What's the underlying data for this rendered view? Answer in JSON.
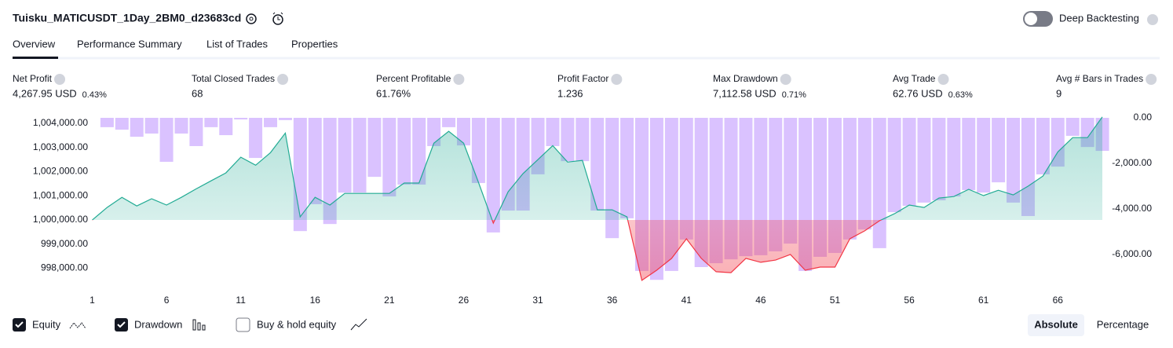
{
  "header": {
    "title": "Tuisku_MATICUSDT_1Day_2BM0_d23683cd",
    "deep_backtesting": "Deep Backtesting"
  },
  "tabs": [
    "Overview",
    "Performance Summary",
    "List of Trades",
    "Properties"
  ],
  "stats": [
    {
      "label": "Net Profit",
      "value": "4,267.95 USD",
      "percent": "0.43%"
    },
    {
      "label": "Total Closed Trades",
      "value": "68"
    },
    {
      "label": "Percent Profitable",
      "value": "61.76%"
    },
    {
      "label": "Profit Factor",
      "value": "1.236"
    },
    {
      "label": "Max Drawdown",
      "value": "7,112.58 USD",
      "percent": "0.71%"
    },
    {
      "label": "Avg Trade",
      "value": "62.76 USD",
      "percent": "0.63%"
    },
    {
      "label": "Avg # Bars in Trades",
      "value": "9"
    }
  ],
  "controls": {
    "buy_hold": "Buy & hold equity",
    "modes": [
      "Absolute",
      "Percentage"
    ]
  },
  "chart_data": {
    "type": "line",
    "x": [
      1,
      2,
      3,
      4,
      5,
      6,
      7,
      8,
      9,
      10,
      11,
      12,
      13,
      14,
      15,
      16,
      17,
      18,
      19,
      20,
      21,
      22,
      23,
      24,
      25,
      26,
      27,
      28,
      29,
      30,
      31,
      32,
      33,
      34,
      35,
      36,
      37,
      38,
      39,
      40,
      41,
      42,
      43,
      44,
      45,
      46,
      47,
      48,
      49,
      50,
      51,
      52,
      53,
      54,
      55,
      56,
      57,
      58,
      59,
      60,
      61,
      62,
      63,
      64,
      65,
      66,
      67,
      68,
      69
    ],
    "xlim": [
      0.5,
      69.5
    ],
    "xticks": [
      1,
      6,
      11,
      16,
      21,
      26,
      31,
      36,
      41,
      46,
      51,
      56,
      61,
      66
    ],
    "ylim": [
      997400,
      1004230
    ],
    "yticks": [
      {
        "value": 1004000,
        "label": "1,004,000.00"
      },
      {
        "value": 1003000,
        "label": "1,003,000.00"
      },
      {
        "value": 1002000,
        "label": "1,002,000.00"
      },
      {
        "value": 1001000,
        "label": "1,001,000.00"
      },
      {
        "value": 1000000,
        "label": "1,000,000.00"
      },
      {
        "value": 999000,
        "label": "999,000.00"
      },
      {
        "value": 998000,
        "label": "998,000.00"
      }
    ],
    "y2lim": [
      -7240,
      0
    ],
    "y2ticks": [
      {
        "value": 0,
        "label": "0.00"
      },
      {
        "value": -2000,
        "label": "-2,000.00"
      },
      {
        "value": -4000,
        "label": "-4,000.00"
      },
      {
        "value": -6000,
        "label": "-6,000.00"
      }
    ],
    "baseline": 1000000,
    "series": [
      {
        "name": "Equity",
        "color": "#22ab94",
        "negative_color": "#f23645",
        "values": [
          1000000,
          1000520,
          1000940,
          1000580,
          1000880,
          1000620,
          1000940,
          1001290,
          1001620,
          1001950,
          1002600,
          1002270,
          1002790,
          1003600,
          1000130,
          1000940,
          1000620,
          1001100,
          1001100,
          1001100,
          1001100,
          1001530,
          1001530,
          1003180,
          1003670,
          1003180,
          1001560,
          999870,
          1001170,
          1001920,
          1002500,
          1003080,
          1002400,
          1002470,
          1000420,
          1000420,
          1000130,
          997500,
          997920,
          998410,
          999220,
          998410,
          997860,
          997820,
          998410,
          998250,
          998340,
          998570,
          997920,
          998050,
          998050,
          999220,
          999550,
          999970,
          1000260,
          1000620,
          1000520,
          1000910,
          1000970,
          1001270,
          1001010,
          1001230,
          1001040,
          1001400,
          1001820,
          1002820,
          1003410,
          1003410,
          1004268
        ]
      },
      {
        "name": "Drawdown",
        "color": "#d1b3ff",
        "axis": "y2",
        "values": [
          0,
          -410,
          -520,
          -830,
          -690,
          -1930,
          -690,
          -1240,
          -410,
          -760,
          -70,
          -1760,
          -410,
          -100,
          -4970,
          -3790,
          -4660,
          -3280,
          -3280,
          -2590,
          -3450,
          -2930,
          -2930,
          -1240,
          -410,
          -1210,
          -2860,
          -5030,
          -4070,
          -4070,
          -2480,
          -1240,
          -1900,
          -1900,
          -4070,
          -5280,
          -4410,
          -6720,
          -7110,
          -6720,
          -5340,
          -6550,
          -6380,
          -6210,
          -6070,
          -6030,
          -5860,
          -5520,
          -6720,
          -6100,
          -5930,
          -5340,
          -4900,
          -5720,
          -4140,
          -3860,
          -3720,
          -3620,
          -3450,
          -3170,
          -3280,
          -2830,
          -3720,
          -4310,
          -2480,
          -2140,
          -790,
          -1280,
          -1450
        ]
      }
    ]
  }
}
